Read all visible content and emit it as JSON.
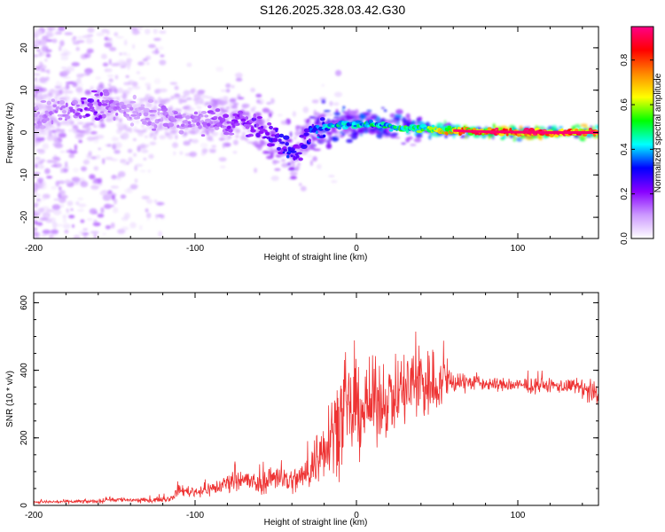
{
  "title": "S126.2025.328.03.42.G30",
  "chart_data": [
    {
      "type": "heatmap",
      "title": "S126.2025.328.03.42.G30",
      "xlabel": "Height of straight line (km)",
      "ylabel": "Frequency (Hz)",
      "xlim": [
        -200,
        150
      ],
      "ylim": [
        -25,
        25
      ],
      "x_ticks": [
        -200,
        -100,
        0,
        100
      ],
      "y_ticks": [
        -20,
        -10,
        0,
        10,
        20
      ],
      "colorbar": {
        "label": "Normalized spectral amplitude",
        "range": [
          0,
          0.95
        ],
        "ticks": [
          "0.0",
          "0.2",
          "0.4",
          "0.6",
          "0.8"
        ],
        "tick_values": [
          0,
          0.2,
          0.4,
          0.6,
          0.8
        ],
        "colors": [
          "#ffffff",
          "#cc99ff",
          "#8800ff",
          "#0000ff",
          "#00ffff",
          "#00ff00",
          "#ffff00",
          "#ff8800",
          "#ff0000",
          "#ff0088"
        ]
      },
      "ridge_track": {
        "x": [
          -200,
          -180,
          -165,
          -150,
          -135,
          -120,
          -105,
          -90,
          -80,
          -70,
          -60,
          -50,
          -45,
          -40,
          -35,
          -30,
          -25,
          -20,
          -10,
          0,
          10,
          20,
          30,
          40,
          50,
          60,
          70,
          80,
          100,
          120,
          150
        ],
        "y": [
          4,
          5,
          6,
          6,
          5,
          4,
          3,
          3,
          2,
          3,
          1,
          -1,
          -3,
          -5,
          -3,
          -1,
          0,
          1,
          2,
          2,
          2,
          1.5,
          1,
          1,
          0.7,
          0.5,
          0.3,
          0.2,
          0.1,
          0,
          0
        ],
        "amplitude": [
          0.12,
          0.15,
          0.25,
          0.15,
          0.12,
          0.15,
          0.15,
          0.18,
          0.2,
          0.22,
          0.25,
          0.28,
          0.3,
          0.35,
          0.25,
          0.3,
          0.4,
          0.45,
          0.5,
          0.5,
          0.5,
          0.52,
          0.55,
          0.6,
          0.65,
          0.8,
          0.85,
          0.9,
          0.95,
          0.95,
          0.95
        ]
      }
    },
    {
      "type": "line",
      "xlabel": "Height of straight line (km)",
      "ylabel": "SNR (10 * v/v)",
      "xlim": [
        -200,
        150
      ],
      "ylim": [
        0,
        630
      ],
      "x_ticks": [
        -200,
        -100,
        0,
        100
      ],
      "y_ticks": [
        0,
        200,
        400,
        600
      ],
      "color": "#ee3333",
      "envelope": {
        "x": [
          -200,
          -160,
          -155,
          -130,
          -115,
          -110,
          -100,
          -85,
          -75,
          -60,
          -50,
          -40,
          -30,
          -25,
          -20,
          -15,
          -10,
          0,
          10,
          20,
          30,
          40,
          45,
          50,
          60,
          70,
          80,
          100,
          120,
          140,
          145,
          150
        ],
        "center": [
          10,
          12,
          18,
          15,
          20,
          45,
          40,
          55,
          85,
          60,
          90,
          70,
          95,
          140,
          180,
          230,
          260,
          280,
          300,
          320,
          340,
          370,
          360,
          360,
          370,
          365,
          360,
          355,
          355,
          350,
          330,
          320
        ],
        "spread": [
          6,
          7,
          10,
          8,
          10,
          20,
          20,
          30,
          40,
          40,
          50,
          50,
          60,
          100,
          120,
          150,
          170,
          170,
          150,
          130,
          150,
          170,
          150,
          100,
          50,
          30,
          25,
          25,
          25,
          30,
          60,
          50
        ]
      }
    }
  ]
}
